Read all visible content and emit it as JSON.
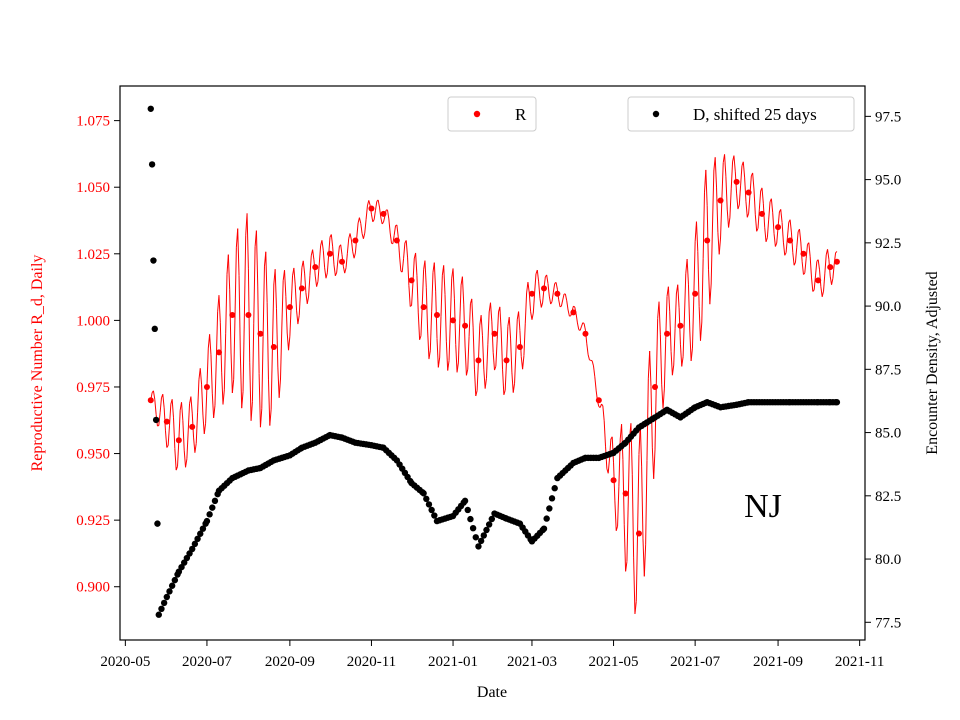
{
  "colors": {
    "r_series": "#ff0000",
    "d_series": "#000000",
    "axis": "#000000",
    "legend_border": "#cccccc"
  },
  "chart_data": {
    "type": "scatter",
    "title": "",
    "annotation": "NJ",
    "xlabel": "Date",
    "ylabel_left": "Reproductive Number R_d, Daily",
    "ylabel_right": "Encounter Density, Adjusted",
    "xlim": [
      "2020-04-27",
      "2021-11-05"
    ],
    "ylim_left": [
      0.88,
      1.088
    ],
    "ylim_right": [
      76.8,
      98.7
    ],
    "x_ticks": [
      "2020-05",
      "2020-07",
      "2020-09",
      "2020-11",
      "2021-01",
      "2021-03",
      "2021-05",
      "2021-07",
      "2021-09",
      "2021-11"
    ],
    "y_ticks_left": [
      "0.900",
      "0.925",
      "0.950",
      "0.975",
      "1.000",
      "1.025",
      "1.050",
      "1.075"
    ],
    "y_ticks_right": [
      "77.5",
      "80.0",
      "82.5",
      "85.0",
      "87.5",
      "90.0",
      "92.5",
      "95.0",
      "97.5"
    ],
    "legend": [
      {
        "label": "R",
        "position": "top-center"
      },
      {
        "label": "D, shifted 25 days",
        "position": "top-right"
      }
    ],
    "series": [
      {
        "name": "R",
        "axis": "left",
        "marker": "dot-with-daily-oscillation",
        "x": [
          "2020-05-20",
          "2020-06-01",
          "2020-06-10",
          "2020-06-20",
          "2020-07-01",
          "2020-07-10",
          "2020-07-20",
          "2020-08-01",
          "2020-08-10",
          "2020-08-20",
          "2020-09-01",
          "2020-09-10",
          "2020-09-20",
          "2020-10-01",
          "2020-10-10",
          "2020-10-20",
          "2020-11-01",
          "2020-11-10",
          "2020-11-20",
          "2020-12-01",
          "2020-12-10",
          "2020-12-20",
          "2021-01-01",
          "2021-01-10",
          "2021-01-20",
          "2021-02-01",
          "2021-02-10",
          "2021-02-20",
          "2021-03-01",
          "2021-03-10",
          "2021-03-20",
          "2021-04-01",
          "2021-04-10",
          "2021-04-20",
          "2021-05-01",
          "2021-05-10",
          "2021-05-20",
          "2021-06-01",
          "2021-06-10",
          "2021-06-20",
          "2021-07-01",
          "2021-07-10",
          "2021-07-20",
          "2021-08-01",
          "2021-08-10",
          "2021-08-20",
          "2021-09-01",
          "2021-09-10",
          "2021-09-20",
          "2021-10-01",
          "2021-10-10",
          "2021-10-15"
        ],
        "values": [
          0.97,
          0.962,
          0.955,
          0.96,
          0.975,
          0.988,
          1.002,
          1.002,
          0.995,
          0.99,
          1.005,
          1.012,
          1.02,
          1.025,
          1.022,
          1.03,
          1.042,
          1.04,
          1.03,
          1.015,
          1.005,
          1.002,
          1.0,
          0.998,
          0.985,
          0.995,
          0.985,
          0.99,
          1.01,
          1.012,
          1.01,
          1.003,
          0.995,
          0.97,
          0.94,
          0.935,
          0.92,
          0.975,
          0.995,
          0.998,
          1.01,
          1.03,
          1.045,
          1.052,
          1.048,
          1.04,
          1.035,
          1.03,
          1.025,
          1.015,
          1.02,
          1.022
        ],
        "daily_spread": [
          0.004,
          0.01,
          0.014,
          0.012,
          0.016,
          0.022,
          0.03,
          0.04,
          0.036,
          0.03,
          0.014,
          0.01,
          0.008,
          0.008,
          0.006,
          0.006,
          0.005,
          0.004,
          0.006,
          0.012,
          0.018,
          0.02,
          0.02,
          0.018,
          0.016,
          0.014,
          0.016,
          0.014,
          0.01,
          0.006,
          0.004,
          0.003,
          0.003,
          0.003,
          0.015,
          0.03,
          0.038,
          0.03,
          0.018,
          0.016,
          0.025,
          0.03,
          0.018,
          0.01,
          0.01,
          0.01,
          0.008,
          0.008,
          0.008,
          0.008,
          0.008,
          0.004
        ]
      },
      {
        "name": "D, shifted 25 days",
        "axis": "right",
        "marker": "dot",
        "x": [
          "2020-05-20",
          "2020-05-21",
          "2020-05-22",
          "2020-05-23",
          "2020-05-24",
          "2020-05-25",
          "2020-05-26",
          "2020-06-01",
          "2020-06-10",
          "2020-06-20",
          "2020-07-01",
          "2020-07-10",
          "2020-07-20",
          "2020-08-01",
          "2020-08-10",
          "2020-08-20",
          "2020-09-01",
          "2020-09-10",
          "2020-09-20",
          "2020-10-01",
          "2020-10-10",
          "2020-10-20",
          "2020-11-01",
          "2020-11-10",
          "2020-11-20",
          "2020-12-01",
          "2020-12-10",
          "2020-12-20",
          "2021-01-01",
          "2021-01-10",
          "2021-01-20",
          "2021-02-01",
          "2021-02-10",
          "2021-02-20",
          "2021-03-01",
          "2021-03-10",
          "2021-03-20",
          "2021-04-01",
          "2021-04-10",
          "2021-04-20",
          "2021-05-01",
          "2021-05-10",
          "2021-05-20",
          "2021-06-01",
          "2021-06-10",
          "2021-06-20",
          "2021-07-01",
          "2021-07-10",
          "2021-07-20",
          "2021-08-01",
          "2021-08-10",
          "2021-08-20",
          "2021-09-01",
          "2021-09-10",
          "2021-09-20",
          "2021-10-01",
          "2021-10-10",
          "2021-10-15"
        ],
        "values": [
          97.8,
          95.6,
          91.8,
          89.1,
          85.5,
          81.4,
          77.8,
          78.5,
          79.5,
          80.4,
          81.5,
          82.7,
          83.2,
          83.5,
          83.6,
          83.9,
          84.1,
          84.4,
          84.6,
          84.9,
          84.8,
          84.6,
          84.5,
          84.4,
          83.9,
          83.0,
          82.6,
          81.5,
          81.7,
          82.3,
          80.5,
          81.8,
          81.6,
          81.4,
          80.7,
          81.2,
          83.2,
          83.8,
          84.0,
          84.0,
          84.2,
          84.6,
          85.2,
          85.6,
          85.9,
          85.6,
          86.0,
          86.2,
          86.0,
          86.1,
          86.2,
          86.2,
          86.2,
          86.2,
          86.2,
          86.2,
          86.2,
          86.2
        ]
      }
    ]
  }
}
